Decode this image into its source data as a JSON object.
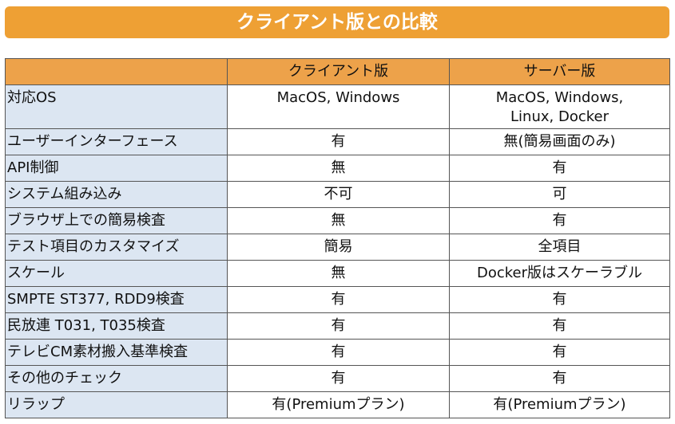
{
  "title": "クライアント版との比較",
  "table": {
    "columns": [
      "クライアント版",
      "サーバー版"
    ],
    "rows": [
      [
        "対応OS",
        "MacOS,  Windows",
        "MacOS, Windows,\nLinux, Docker"
      ],
      [
        "ユーザーインターフェース",
        "有",
        "無(簡易画面のみ)"
      ],
      [
        "API制御",
        "無",
        "有"
      ],
      [
        "システム組み込み",
        "不可",
        "可"
      ],
      [
        "ブラウザ上での簡易検査",
        "無",
        "有"
      ],
      [
        "テスト項目のカスタマイズ",
        "簡易",
        "全項目"
      ],
      [
        "スケール",
        "無",
        "Docker版はスケーラブル"
      ],
      [
        "SMPTE ST377, RDD9検査",
        "有",
        "有"
      ],
      [
        "民放連 T031, T035検査",
        "有",
        "有"
      ],
      [
        "テレビCM素材搬入基準検査",
        "有",
        "有"
      ],
      [
        "その他のチェック",
        "有",
        "有"
      ],
      [
        "リラップ",
        "有(Premiumプラン)",
        "有(Premiumプラン)"
      ]
    ]
  }
}
